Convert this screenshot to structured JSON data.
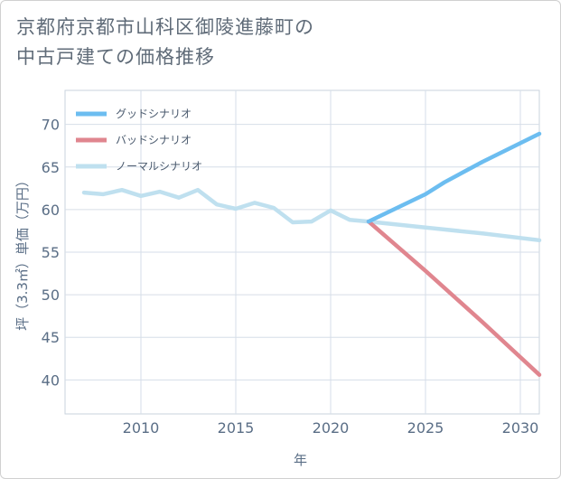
{
  "title": {
    "line1": "京都府京都市山科区御陵進藤町の",
    "line2": "中古戸建ての価格推移"
  },
  "chart_data": {
    "type": "line",
    "xlabel": "年",
    "ylabel": "坪（3.3㎡）単価（万円）",
    "xlim": [
      2006,
      2031
    ],
    "ylim": [
      36,
      74
    ],
    "xticks": [
      2010,
      2015,
      2020,
      2025,
      2030
    ],
    "yticks": [
      40,
      45,
      50,
      55,
      60,
      65,
      70
    ],
    "grid": true,
    "legend_position": "top-left",
    "series": [
      {
        "name": "グッドシナリオ",
        "color": "#6cbdf0",
        "x": [
          2022,
          2025,
          2026,
          2028,
          2031
        ],
        "y": [
          58.6,
          61.8,
          63.2,
          65.6,
          68.9
        ]
      },
      {
        "name": "バッドシナリオ",
        "color": "#e0868f",
        "x": [
          2022,
          2025,
          2028,
          2031
        ],
        "y": [
          58.6,
          52.8,
          46.8,
          40.6
        ]
      },
      {
        "name": "ノーマルシナリオ",
        "color": "#bfe0ef",
        "x": [
          2007,
          2008,
          2009,
          2010,
          2011,
          2012,
          2013,
          2014,
          2015,
          2016,
          2017,
          2018,
          2019,
          2020,
          2021,
          2022,
          2025,
          2028,
          2031
        ],
        "y": [
          62.0,
          61.8,
          62.3,
          61.6,
          62.1,
          61.4,
          62.3,
          60.6,
          60.1,
          60.8,
          60.2,
          58.5,
          58.6,
          59.9,
          58.8,
          58.6,
          57.9,
          57.2,
          56.4
        ]
      }
    ]
  }
}
